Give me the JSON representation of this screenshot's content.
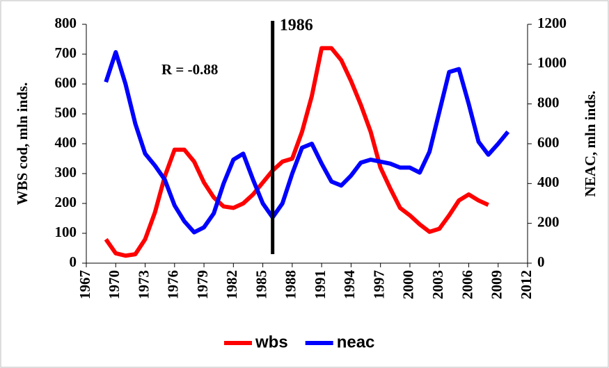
{
  "chart_data": {
    "type": "line",
    "x": [
      1969,
      1970,
      1971,
      1972,
      1973,
      1974,
      1975,
      1976,
      1977,
      1978,
      1979,
      1980,
      1981,
      1982,
      1983,
      1984,
      1985,
      1986,
      1987,
      1988,
      1989,
      1990,
      1991,
      1992,
      1993,
      1994,
      1995,
      1996,
      1997,
      1998,
      1999,
      2000,
      2001,
      2002,
      2003,
      2004,
      2005,
      2006,
      2007,
      2008,
      2009,
      2010
    ],
    "series": [
      {
        "name": "wbs",
        "color": "#ff0000",
        "values": [
          80,
          33,
          25,
          30,
          80,
          170,
          290,
          380,
          380,
          340,
          270,
          220,
          190,
          185,
          200,
          230,
          270,
          310,
          340,
          350,
          440,
          560,
          720,
          720,
          680,
          610,
          530,
          440,
          320,
          250,
          185,
          160,
          130,
          105,
          115,
          160,
          210,
          230,
          210,
          195,
          null,
          null
        ]
      },
      {
        "name": "neac",
        "color": "#0000ff",
        "axis": "y2",
        "values": [
          910,
          1060,
          900,
          700,
          550,
          490,
          420,
          290,
          210,
          155,
          180,
          250,
          400,
          520,
          550,
          420,
          300,
          230,
          300,
          450,
          580,
          600,
          500,
          410,
          390,
          440,
          505,
          520,
          510,
          500,
          480,
          480,
          455,
          560,
          760,
          960,
          975,
          800,
          610,
          545,
          600,
          660
        ]
      }
    ],
    "xlim": [
      1967,
      2012
    ],
    "xticks": [
      1967,
      1970,
      1973,
      1976,
      1979,
      1982,
      1985,
      1988,
      1991,
      1994,
      1997,
      2000,
      2003,
      2006,
      2009,
      2012
    ],
    "ylim": [
      0,
      800
    ],
    "yticks": [
      0,
      100,
      200,
      300,
      400,
      500,
      600,
      700,
      800
    ],
    "y2lim": [
      0,
      1200
    ],
    "y2ticks": [
      0,
      200,
      400,
      600,
      800,
      1000,
      1200
    ],
    "y_label": "WBS cod, mln inds.",
    "y2_label": "NEAC, mln inds.",
    "vline": 1986,
    "annotation": "R = -0.88",
    "legend": "bottom"
  }
}
